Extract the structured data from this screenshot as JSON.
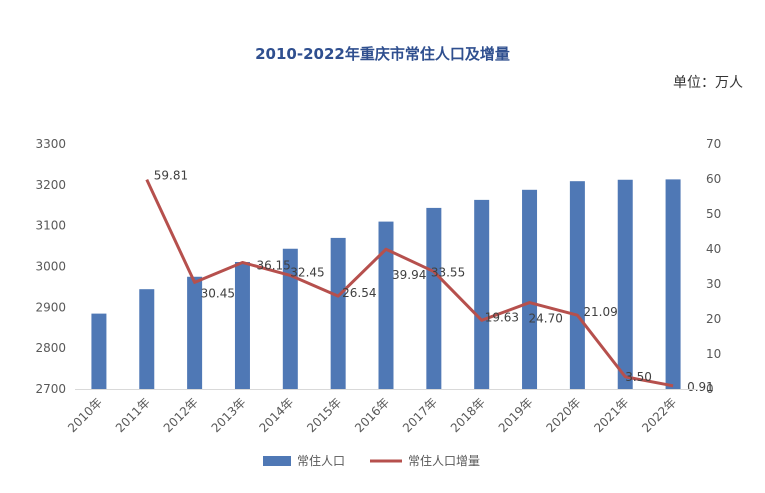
{
  "chart_data": {
    "type": "bar+line",
    "title": "2010-2022年重庆市常住人口及增量",
    "unit": "单位：万人",
    "categories": [
      "2010年",
      "2011年",
      "2012年",
      "2013年",
      "2014年",
      "2015年",
      "2016年",
      "2017年",
      "2018年",
      "2019年",
      "2020年",
      "2021年",
      "2022年"
    ],
    "series": [
      {
        "name": "常住人口",
        "type": "bar",
        "axis": "left",
        "color": "#4f78b5",
        "values": [
          2884.62,
          2944.43,
          2974.88,
          3011.03,
          3043.48,
          3070.02,
          3109.96,
          3143.51,
          3163.14,
          3187.84,
          3208.93,
          3212.43,
          3213.34
        ]
      },
      {
        "name": "常住人口增量",
        "type": "line",
        "axis": "right",
        "color": "#b6504d",
        "values": [
          null,
          59.81,
          30.45,
          36.15,
          32.45,
          26.54,
          39.94,
          33.55,
          19.63,
          24.7,
          21.09,
          3.5,
          0.91
        ],
        "labels": [
          "",
          "59.81",
          "30.45",
          "36.15",
          "32.45",
          "26.54",
          "39.94",
          "33.55",
          "19.63",
          "24.70",
          "21.09",
          "3.50",
          "0.91"
        ]
      }
    ],
    "y_left": {
      "min": 2700,
      "max": 3300,
      "ticks": [
        "2700",
        "2800",
        "2900",
        "3000",
        "3100",
        "3200",
        "3300"
      ]
    },
    "y_right": {
      "min": 0,
      "max": 70,
      "ticks": [
        "0",
        "10",
        "20",
        "30",
        "40",
        "50",
        "60",
        "70"
      ]
    },
    "grid": false,
    "legend_position": "bottom"
  }
}
